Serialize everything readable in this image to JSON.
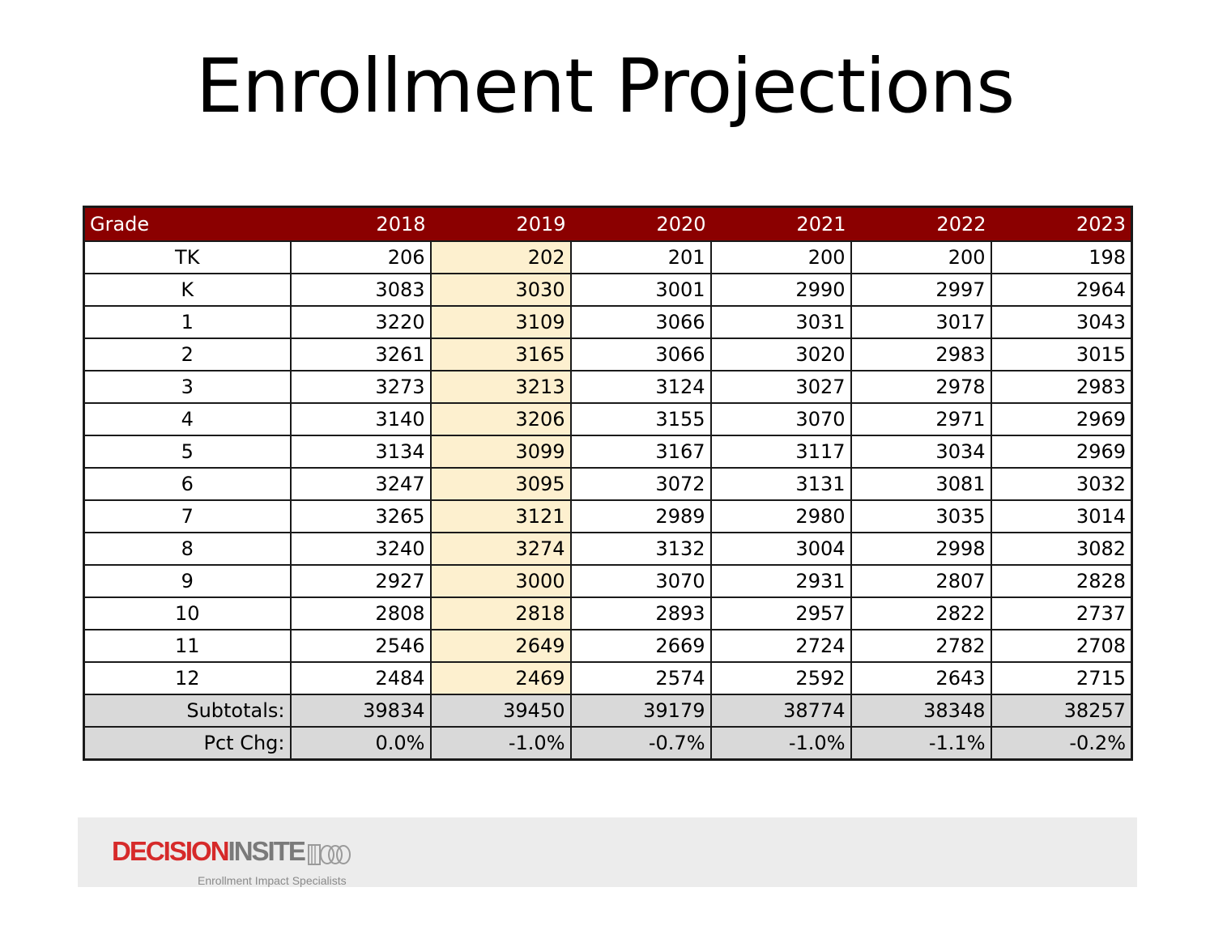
{
  "slide": {
    "title": "Enrollment Projections"
  },
  "table": {
    "header": {
      "grade": "Grade",
      "years": [
        "2018",
        "2019",
        "2020",
        "2021",
        "2022",
        "2023"
      ]
    },
    "rows": [
      {
        "grade": "TK",
        "values": [
          "206",
          "202",
          "201",
          "200",
          "200",
          "198"
        ]
      },
      {
        "grade": "K",
        "values": [
          "3083",
          "3030",
          "3001",
          "2990",
          "2997",
          "2964"
        ]
      },
      {
        "grade": "1",
        "values": [
          "3220",
          "3109",
          "3066",
          "3031",
          "3017",
          "3043"
        ]
      },
      {
        "grade": "2",
        "values": [
          "3261",
          "3165",
          "3066",
          "3020",
          "2983",
          "3015"
        ]
      },
      {
        "grade": "3",
        "values": [
          "3273",
          "3213",
          "3124",
          "3027",
          "2978",
          "2983"
        ]
      },
      {
        "grade": "4",
        "values": [
          "3140",
          "3206",
          "3155",
          "3070",
          "2971",
          "2969"
        ]
      },
      {
        "grade": "5",
        "values": [
          "3134",
          "3099",
          "3167",
          "3117",
          "3034",
          "2969"
        ]
      },
      {
        "grade": "6",
        "values": [
          "3247",
          "3095",
          "3072",
          "3131",
          "3081",
          "3032"
        ]
      },
      {
        "grade": "7",
        "values": [
          "3265",
          "3121",
          "2989",
          "2980",
          "3035",
          "3014"
        ]
      },
      {
        "grade": "8",
        "values": [
          "3240",
          "3274",
          "3132",
          "3004",
          "2998",
          "3082"
        ]
      },
      {
        "grade": "9",
        "values": [
          "2927",
          "3000",
          "3070",
          "2931",
          "2807",
          "2828"
        ]
      },
      {
        "grade": "10",
        "values": [
          "2808",
          "2818",
          "2893",
          "2957",
          "2822",
          "2737"
        ]
      },
      {
        "grade": "11",
        "values": [
          "2546",
          "2649",
          "2669",
          "2724",
          "2782",
          "2708"
        ]
      },
      {
        "grade": "12",
        "values": [
          "2484",
          "2469",
          "2574",
          "2592",
          "2643",
          "2715"
        ]
      }
    ],
    "subtotals": {
      "label": "Subtotals:",
      "values": [
        "39834",
        "39450",
        "39179",
        "38774",
        "38348",
        "38257"
      ]
    },
    "pct_chg": {
      "label": "Pct Chg:",
      "values": [
        "0.0%",
        "-1.0%",
        "-0.7%",
        "-1.0%",
        "-1.1%",
        "-0.2%"
      ]
    },
    "highlight_color": "#fdf0cf",
    "header_color": "#8b0000",
    "summary_color": "#d9d9d9"
  },
  "footer": {
    "logo_part1": "DECISION",
    "logo_part2": "INSITE",
    "tagline": "Enrollment Impact Specialists"
  }
}
